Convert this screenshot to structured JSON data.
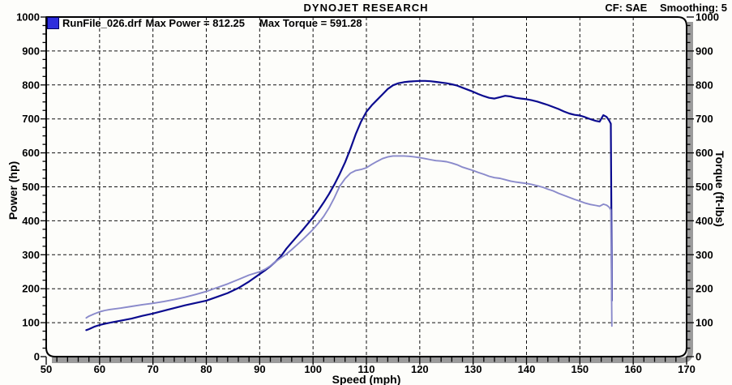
{
  "header": {
    "title": "DYNOJET RESEARCH",
    "correction_factor": "CF: SAE",
    "smoothing": "Smoothing: 5"
  },
  "legend": {
    "run_file": "RunFile_026.drf",
    "max_power": "Max Power = 812.25",
    "max_torque": "Max Torque = 591.28",
    "swatch_color": "#2e2edd"
  },
  "frame": {
    "border_color": "#000000",
    "shadow_color": "#9b9b9b",
    "grid_color": "#111111",
    "background": "#fdfdfa"
  },
  "chart_data": {
    "type": "line",
    "title": "DYNOJET RESEARCH",
    "xlabel": "Speed (mph)",
    "ylabel_left": "Power (hp)",
    "ylabel_right": "Torque (ft-lbs)",
    "x_axis": {
      "min": 50,
      "max": 170,
      "major_step": 10,
      "minor_step": 2
    },
    "y_axis": {
      "min": 0,
      "max": 1000,
      "major_step": 100,
      "minor_step": 25
    },
    "grid": "dashed-at-major-ticks",
    "legend_position": "top-left",
    "max_power": 812.25,
    "max_torque": 591.28,
    "series": [
      {
        "name": "Power (hp)",
        "run": "RunFile_026.drf",
        "color": "#0b0b8f",
        "width": 2.2,
        "points": [
          [
            57.5,
            78
          ],
          [
            58,
            81
          ],
          [
            59,
            88
          ],
          [
            60,
            93
          ],
          [
            61,
            97
          ],
          [
            62,
            100
          ],
          [
            64,
            106
          ],
          [
            66,
            112
          ],
          [
            68,
            120
          ],
          [
            70,
            127
          ],
          [
            72,
            135
          ],
          [
            74,
            143
          ],
          [
            76,
            151
          ],
          [
            78,
            158
          ],
          [
            80,
            165
          ],
          [
            82,
            176
          ],
          [
            84,
            187
          ],
          [
            86,
            202
          ],
          [
            88,
            221
          ],
          [
            90,
            243
          ],
          [
            91,
            254
          ],
          [
            92,
            266
          ],
          [
            93,
            280
          ],
          [
            94,
            296
          ],
          [
            95,
            318
          ],
          [
            96,
            336
          ],
          [
            97,
            354
          ],
          [
            98,
            372
          ],
          [
            99,
            391
          ],
          [
            100,
            410
          ],
          [
            101,
            431
          ],
          [
            102,
            454
          ],
          [
            103,
            479
          ],
          [
            104,
            507
          ],
          [
            105,
            538
          ],
          [
            106,
            572
          ],
          [
            107,
            612
          ],
          [
            108,
            655
          ],
          [
            109,
            692
          ],
          [
            110,
            721
          ],
          [
            111,
            740
          ],
          [
            112,
            756
          ],
          [
            113,
            772
          ],
          [
            114,
            788
          ],
          [
            115,
            799
          ],
          [
            116,
            805
          ],
          [
            117,
            808
          ],
          [
            118,
            810
          ],
          [
            119,
            811
          ],
          [
            120,
            812
          ],
          [
            121,
            812
          ],
          [
            122,
            811
          ],
          [
            123,
            809
          ],
          [
            124,
            807
          ],
          [
            125,
            805
          ],
          [
            126,
            802
          ],
          [
            127,
            798
          ],
          [
            128,
            792
          ],
          [
            129,
            786
          ],
          [
            130,
            780
          ],
          [
            131,
            773
          ],
          [
            132,
            767
          ],
          [
            133,
            762
          ],
          [
            134,
            760
          ],
          [
            135,
            764
          ],
          [
            136,
            768
          ],
          [
            137,
            766
          ],
          [
            138,
            762
          ],
          [
            139,
            760
          ],
          [
            140,
            758
          ],
          [
            141,
            755
          ],
          [
            142,
            751
          ],
          [
            143,
            746
          ],
          [
            144,
            741
          ],
          [
            145,
            735
          ],
          [
            146,
            729
          ],
          [
            147,
            722
          ],
          [
            148,
            716
          ],
          [
            149,
            712
          ],
          [
            150,
            710
          ],
          [
            151,
            705
          ],
          [
            152,
            699
          ],
          [
            153,
            694
          ],
          [
            153.7,
            692
          ],
          [
            154.4,
            711
          ],
          [
            155,
            706
          ],
          [
            155.5,
            695
          ],
          [
            155.8,
            686
          ],
          [
            155.9,
            430
          ],
          [
            156,
            165
          ]
        ]
      },
      {
        "name": "Torque (ft-lbs)",
        "run": "RunFile_026.drf",
        "color": "#8a8acb",
        "width": 1.9,
        "points": [
          [
            57.5,
            114
          ],
          [
            58,
            119
          ],
          [
            59,
            126
          ],
          [
            60,
            132
          ],
          [
            61,
            136
          ],
          [
            62,
            139
          ],
          [
            64,
            143
          ],
          [
            66,
            148
          ],
          [
            68,
            153
          ],
          [
            70,
            157
          ],
          [
            72,
            162
          ],
          [
            74,
            168
          ],
          [
            76,
            175
          ],
          [
            78,
            183
          ],
          [
            80,
            192
          ],
          [
            82,
            203
          ],
          [
            84,
            214
          ],
          [
            86,
            227
          ],
          [
            88,
            240
          ],
          [
            90,
            250
          ],
          [
            91,
            257
          ],
          [
            92,
            267
          ],
          [
            93,
            280
          ],
          [
            94,
            291
          ],
          [
            95,
            302
          ],
          [
            96,
            315
          ],
          [
            97,
            329
          ],
          [
            98,
            344
          ],
          [
            99,
            359
          ],
          [
            100,
            375
          ],
          [
            101,
            393
          ],
          [
            102,
            413
          ],
          [
            103,
            438
          ],
          [
            104,
            468
          ],
          [
            105,
            502
          ],
          [
            106,
            524
          ],
          [
            107,
            540
          ],
          [
            108,
            548
          ],
          [
            109,
            551
          ],
          [
            110,
            556
          ],
          [
            111,
            566
          ],
          [
            112,
            575
          ],
          [
            113,
            583
          ],
          [
            114,
            588
          ],
          [
            115,
            591
          ],
          [
            116,
            591
          ],
          [
            117,
            591
          ],
          [
            118,
            590
          ],
          [
            119,
            588
          ],
          [
            120,
            586
          ],
          [
            121,
            583
          ],
          [
            122,
            580
          ],
          [
            123,
            577
          ],
          [
            124,
            576
          ],
          [
            125,
            574
          ],
          [
            126,
            570
          ],
          [
            127,
            565
          ],
          [
            128,
            558
          ],
          [
            129,
            553
          ],
          [
            130,
            548
          ],
          [
            131,
            542
          ],
          [
            132,
            537
          ],
          [
            133,
            531
          ],
          [
            134,
            527
          ],
          [
            135,
            525
          ],
          [
            136,
            521
          ],
          [
            137,
            517
          ],
          [
            138,
            514
          ],
          [
            139,
            512
          ],
          [
            140,
            510
          ],
          [
            141,
            507
          ],
          [
            142,
            503
          ],
          [
            143,
            499
          ],
          [
            144,
            493
          ],
          [
            145,
            488
          ],
          [
            146,
            481
          ],
          [
            147,
            475
          ],
          [
            148,
            469
          ],
          [
            149,
            463
          ],
          [
            150,
            458
          ],
          [
            151,
            452
          ],
          [
            152,
            448
          ],
          [
            153,
            445
          ],
          [
            153.7,
            443
          ],
          [
            154.4,
            449
          ],
          [
            155,
            446
          ],
          [
            155.5,
            440
          ],
          [
            155.8,
            432
          ],
          [
            155.9,
            260
          ],
          [
            156,
            90
          ]
        ]
      }
    ]
  }
}
